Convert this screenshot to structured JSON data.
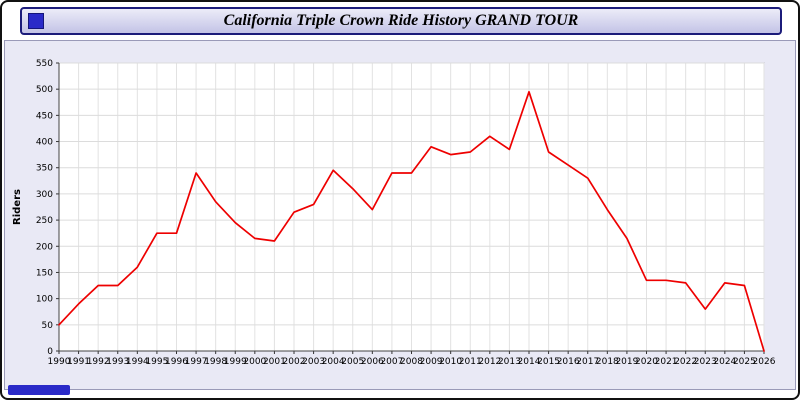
{
  "window": {
    "title": "California Triple Crown Ride History GRAND TOUR"
  },
  "colors": {
    "line": "#ee0000",
    "titlebar_border": "#1b1b7a",
    "page_background": "#e9e9f5",
    "plot_background": "#ffffff",
    "grid": "#dcdcdc",
    "chrome_blue": "#2a2ac8"
  },
  "chart_data": {
    "type": "line",
    "title": "California Triple Crown Ride History GRAND TOUR",
    "xlabel": "",
    "ylabel": "Riders",
    "ylim": [
      0,
      550
    ],
    "ytick_step": 50,
    "grid": true,
    "legend": "none",
    "line_color": "#ee0000",
    "x": [
      1990,
      1991,
      1992,
      1993,
      1994,
      1995,
      1996,
      1997,
      1998,
      1999,
      2000,
      2001,
      2002,
      2003,
      2004,
      2005,
      2006,
      2007,
      2008,
      2009,
      2010,
      2011,
      2012,
      2013,
      2014,
      2015,
      2016,
      2017,
      2018,
      2019,
      2020,
      2021,
      2022,
      2023,
      2024,
      2025,
      2026
    ],
    "values": [
      50,
      90,
      125,
      125,
      160,
      225,
      225,
      340,
      285,
      245,
      215,
      210,
      265,
      280,
      345,
      310,
      270,
      340,
      340,
      390,
      375,
      380,
      410,
      385,
      495,
      380,
      355,
      330,
      270,
      215,
      135,
      135,
      130,
      80,
      130,
      125,
      0
    ]
  }
}
